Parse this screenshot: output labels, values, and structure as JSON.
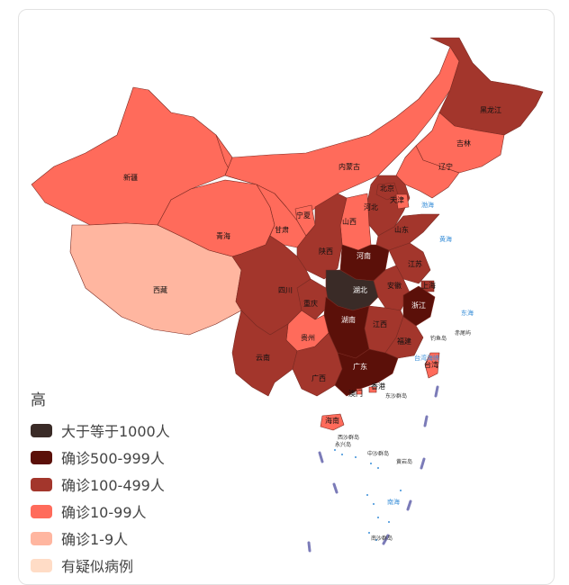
{
  "legend": {
    "title": "高",
    "items": [
      {
        "label": "大于等于1000人",
        "color": "#3a2b27"
      },
      {
        "label": "确诊500-999人",
        "color": "#5b1009"
      },
      {
        "label": "确诊100-499人",
        "color": "#a3362c"
      },
      {
        "label": "确诊10-99人",
        "color": "#ff6b5b"
      },
      {
        "label": "确诊1-9人",
        "color": "#ffb6a0"
      },
      {
        "label": "有疑似病例",
        "color": "#ffdcc6"
      }
    ]
  },
  "provinces": [
    {
      "name": "新疆",
      "tier": 3
    },
    {
      "name": "西藏",
      "tier": 4
    },
    {
      "name": "青海",
      "tier": 3
    },
    {
      "name": "甘肃",
      "tier": 3
    },
    {
      "name": "内蒙古",
      "tier": 3
    },
    {
      "name": "宁夏",
      "tier": 3
    },
    {
      "name": "陕西",
      "tier": 2
    },
    {
      "name": "四川",
      "tier": 2
    },
    {
      "name": "云南",
      "tier": 2
    },
    {
      "name": "贵州",
      "tier": 3
    },
    {
      "name": "广西",
      "tier": 2
    },
    {
      "name": "重庆",
      "tier": 2
    },
    {
      "name": "湖北",
      "tier": 0
    },
    {
      "name": "湖南",
      "tier": 1
    },
    {
      "name": "河南",
      "tier": 1
    },
    {
      "name": "山西",
      "tier": 3
    },
    {
      "name": "河北",
      "tier": 2
    },
    {
      "name": "北京",
      "tier": 2
    },
    {
      "name": "天津",
      "tier": 3
    },
    {
      "name": "山东",
      "tier": 2
    },
    {
      "name": "江苏",
      "tier": 2
    },
    {
      "name": "安徽",
      "tier": 2
    },
    {
      "name": "上海",
      "tier": 2
    },
    {
      "name": "浙江",
      "tier": 1
    },
    {
      "name": "江西",
      "tier": 2
    },
    {
      "name": "福建",
      "tier": 2
    },
    {
      "name": "广东",
      "tier": 1
    },
    {
      "name": "海南",
      "tier": 3
    },
    {
      "name": "台湾",
      "tier": 3
    },
    {
      "name": "香港",
      "tier": 3
    },
    {
      "name": "澳门",
      "tier": 3
    },
    {
      "name": "辽宁",
      "tier": 3
    },
    {
      "name": "吉林",
      "tier": 3
    },
    {
      "name": "黑龙江",
      "tier": 2
    }
  ],
  "sea_labels": [
    "渤海",
    "黄海",
    "东海",
    "南海",
    "台湾海峡"
  ],
  "island_labels": [
    "钓鱼岛",
    "赤尾屿",
    "东沙群岛",
    "西沙群岛",
    "永兴岛",
    "中沙群岛",
    "黄岩岛",
    "南沙群岛"
  ]
}
